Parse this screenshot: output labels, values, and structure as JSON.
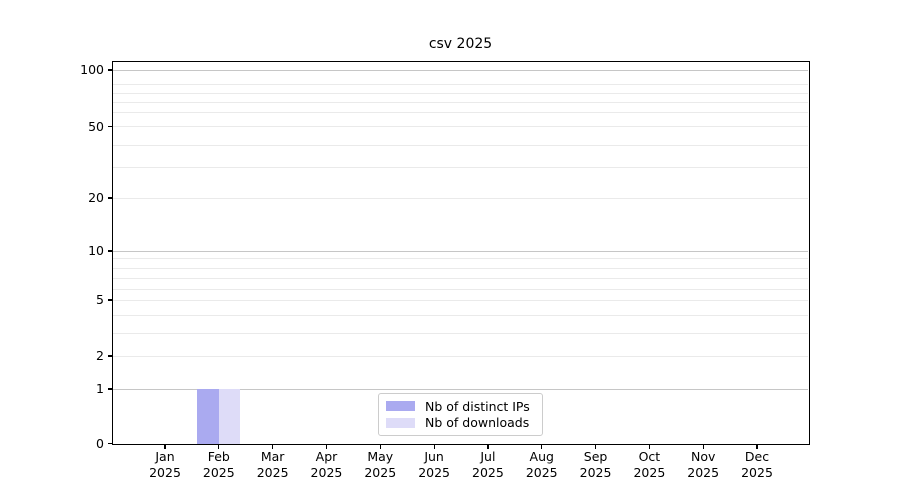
{
  "figure": {
    "title": "csv 2025",
    "background_color": "#ffffff"
  },
  "legend": {
    "items": [
      {
        "label": "Nb of distinct IPs",
        "color": "#aaaaf0"
      },
      {
        "label": "Nb of downloads",
        "color": "#dedcf8"
      }
    ],
    "position": "lower center"
  },
  "axes": {
    "y_tick_labels": [
      "100",
      "50",
      "20",
      "10",
      "5",
      "2",
      "1",
      "0"
    ],
    "x_tick_year": "2025",
    "x_tick_months": [
      "Jan",
      "Feb",
      "Mar",
      "Apr",
      "May",
      "Jun",
      "Jul",
      "Aug",
      "Sep",
      "Oct",
      "Nov",
      "Dec"
    ]
  },
  "colors": {
    "axis": "#000000",
    "grid_major": "#c6c6c6",
    "grid_minor": "#eaeaea",
    "legend_border": "#cccccc"
  },
  "chart_data": {
    "type": "bar",
    "title": "csv 2025",
    "categories": [
      "Jan 2025",
      "Feb 2025",
      "Mar 2025",
      "Apr 2025",
      "May 2025",
      "Jun 2025",
      "Jul 2025",
      "Aug 2025",
      "Sep 2025",
      "Oct 2025",
      "Nov 2025",
      "Dec 2025"
    ],
    "series": [
      {
        "name": "Nb of distinct IPs",
        "color": "#aaaaf0",
        "values": [
          0,
          1,
          0,
          0,
          0,
          0,
          0,
          0,
          0,
          0,
          0,
          0
        ]
      },
      {
        "name": "Nb of downloads",
        "color": "#dedcf8",
        "values": [
          0,
          1,
          0,
          0,
          0,
          0,
          0,
          0,
          0,
          0,
          0,
          0
        ]
      }
    ],
    "xlabel": "",
    "ylabel": "",
    "y_scale": "log-like (compressed near zero, linear 0-1)",
    "y_ticks": [
      0,
      1,
      2,
      5,
      10,
      20,
      50,
      100
    ],
    "y_minor_gridlines": [
      3,
      4,
      6,
      7,
      8,
      9,
      30,
      40,
      60,
      70,
      80,
      90
    ],
    "ylim": [
      0,
      112
    ],
    "grid": "horizontal, major + minor",
    "legend_position": "lower center"
  }
}
